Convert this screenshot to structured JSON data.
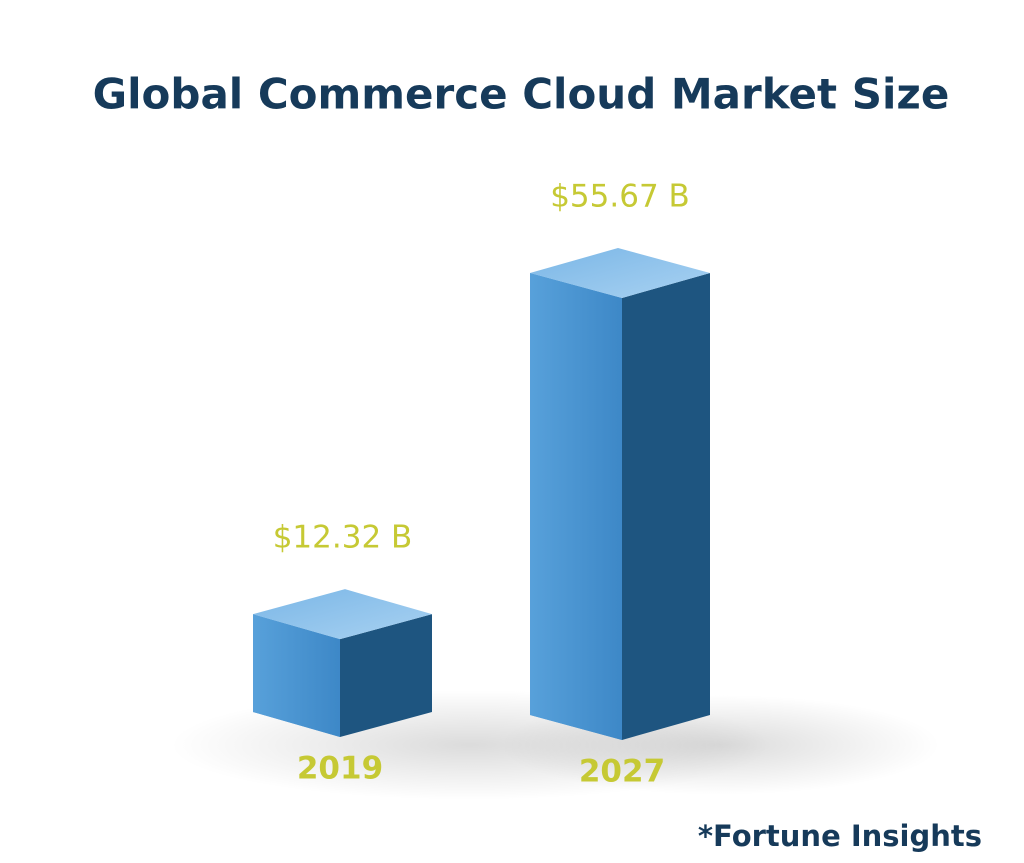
{
  "chart_data": {
    "type": "bar3d",
    "title": "Global Commerce Cloud Market Size",
    "categories": [
      "2019",
      "2027"
    ],
    "values": [
      12.32,
      55.67
    ],
    "value_labels": [
      "$12.32 B",
      "$55.67 B"
    ],
    "color": "#4a93cf",
    "source": "*Fortune Insights"
  }
}
